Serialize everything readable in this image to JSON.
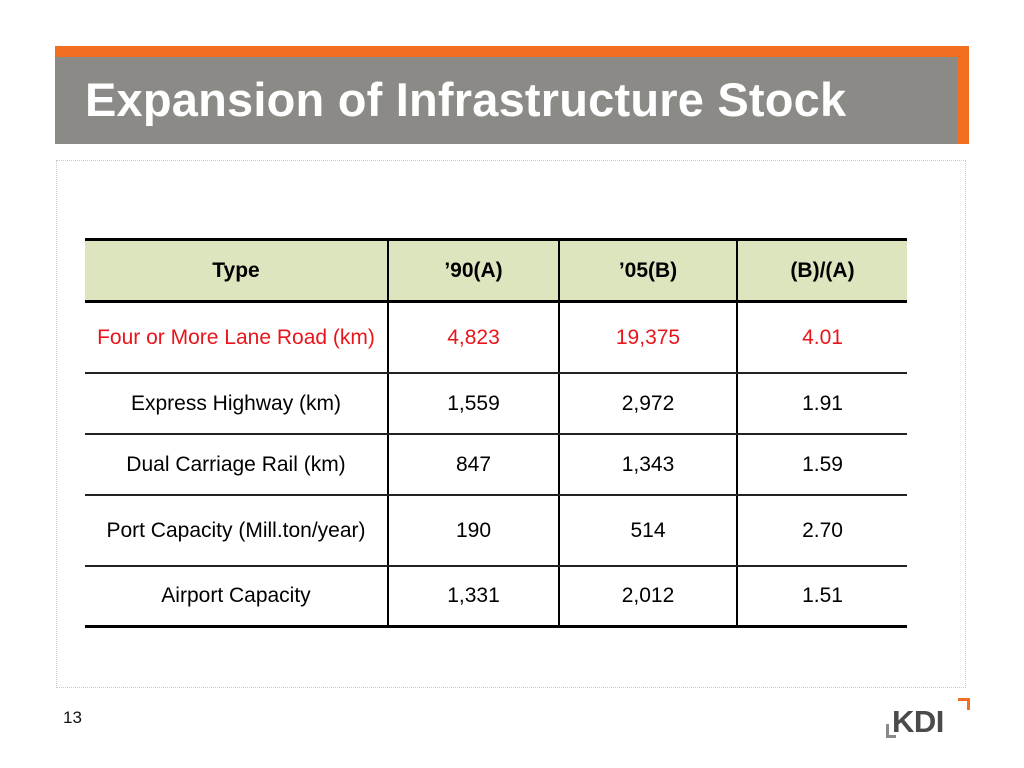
{
  "slide": {
    "title": "Expansion of Infrastructure Stock",
    "page_number": "13",
    "logo_text": "KDI"
  },
  "colors": {
    "title_bar": "#8b8a86",
    "title_accent": "#f26f21",
    "header_fill": "#dde5bf",
    "highlight_text": "#e8151b"
  },
  "table": {
    "headers": [
      "Type",
      "’90(A)",
      "’05(B)",
      "(B)/(A)"
    ],
    "rows": [
      {
        "type": "Four or More Lane Road (km)",
        "a": "4,823",
        "b": "19,375",
        "ratio": "4.01"
      },
      {
        "type": "Express Highway (km)",
        "a": "1,559",
        "b": "2,972",
        "ratio": "1.91"
      },
      {
        "type": "Dual Carriage Rail (km)",
        "a": "847",
        "b": "1,343",
        "ratio": "1.59"
      },
      {
        "type": "Port Capacity (Mill.ton/year)",
        "a": "190",
        "b": "514",
        "ratio": "2.70"
      },
      {
        "type": "Airport Capacity",
        "a": "1,331",
        "b": "2,012",
        "ratio": "1.51"
      }
    ]
  }
}
